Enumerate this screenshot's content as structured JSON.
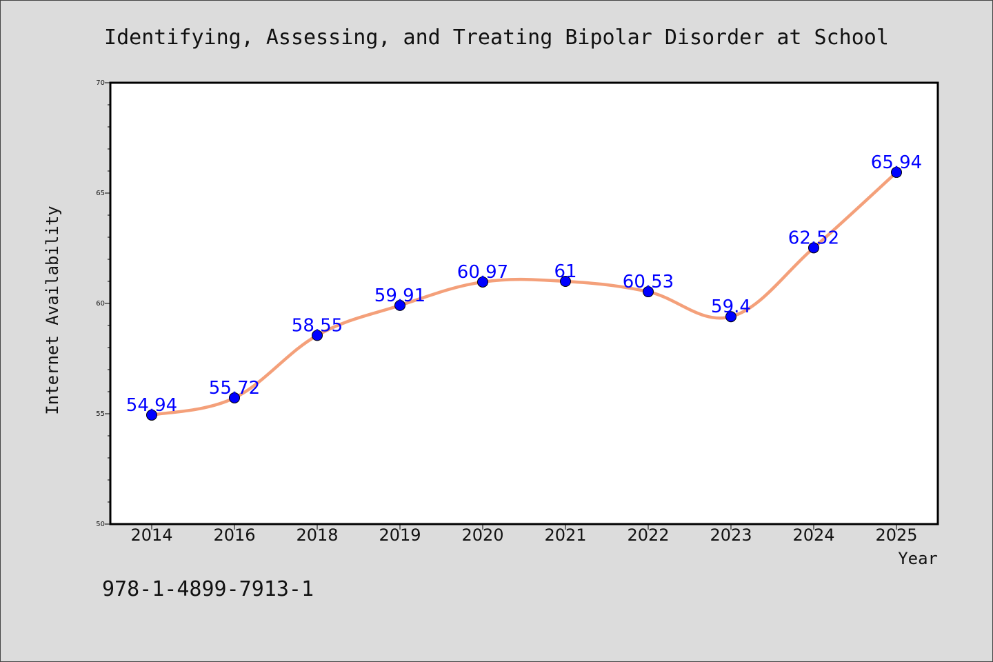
{
  "page": {
    "background": "#dcdcdc",
    "footer_text": "978-1-4899-7913-1"
  },
  "chart_data": {
    "type": "line",
    "title": "Identifying, Assessing, and Treating Bipolar Disorder at School",
    "xlabel": "Year",
    "ylabel": "Internet Availability",
    "categories": [
      "2014",
      "2016",
      "2018",
      "2019",
      "2020",
      "2021",
      "2022",
      "2023",
      "2024",
      "2025"
    ],
    "series": [
      {
        "values": [
          54.94,
          55.72,
          58.55,
          59.91,
          60.97,
          61,
          60.53,
          59.4,
          62.52,
          65.94
        ],
        "labels": [
          "54.94",
          "55.72",
          "58.55",
          "59.91",
          "60.97",
          "61",
          "60.53",
          "59.4",
          "62.52",
          "65.94"
        ],
        "line_color": "#f4a07a",
        "marker_color": "#0000ff"
      }
    ],
    "ylim": [
      50,
      70
    ],
    "yticks": [
      "50",
      "55",
      "60",
      "65",
      "70"
    ],
    "grid": false,
    "legend": "none",
    "colors": {
      "plot_background": "#ffffff",
      "axis": "#000000",
      "data_label": "#0000ff"
    }
  }
}
